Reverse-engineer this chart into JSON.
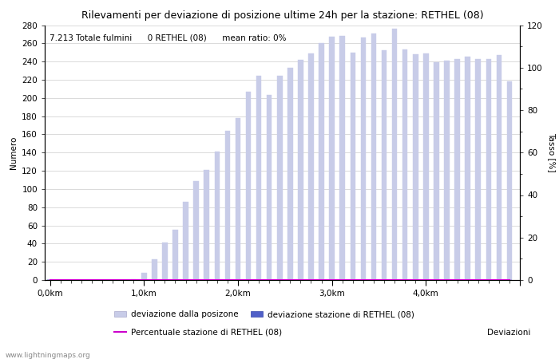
{
  "title": "Rilevamenti per deviazione di posizione ultime 24h per la stazione: RETHEL (08)",
  "xlabel": "Deviazioni",
  "ylabel_left": "Numero",
  "ylabel_right": "Tasso [%]",
  "annotation": "7.213 Totale fulmini      0 RETHEL (08)      mean ratio: 0%",
  "watermark": "www.lightningmaps.org",
  "ylim_left": [
    0,
    280
  ],
  "ylim_right": [
    0,
    120
  ],
  "ytick_left": [
    0,
    20,
    40,
    60,
    80,
    100,
    120,
    140,
    160,
    180,
    200,
    220,
    240,
    260,
    280
  ],
  "ytick_right": [
    0,
    20,
    40,
    60,
    80,
    100,
    120
  ],
  "bar_color_light": "#c8cce8",
  "bar_color_dark": "#5060c8",
  "line_color": "#cc00cc",
  "bg_color": "#ffffff",
  "grid_color": "#cccccc",
  "bar_values": [
    1,
    0,
    0,
    0,
    0,
    0,
    0,
    0,
    1,
    8,
    23,
    41,
    55,
    86,
    109,
    121,
    141,
    164,
    178,
    207,
    224,
    203,
    224,
    233,
    242,
    249,
    260,
    267,
    268,
    250,
    266,
    271,
    252,
    276,
    253,
    248,
    249,
    239,
    241,
    243,
    245,
    243,
    243,
    247,
    218
  ],
  "station_values": [
    0,
    0,
    0,
    0,
    0,
    0,
    0,
    0,
    0,
    0,
    0,
    0,
    0,
    0,
    0,
    0,
    0,
    0,
    0,
    0,
    0,
    0,
    0,
    0,
    0,
    0,
    0,
    0,
    0,
    0,
    0,
    0,
    0,
    0,
    0,
    0,
    0,
    0,
    0,
    0,
    0,
    0,
    0,
    0,
    0
  ],
  "xtick_km_positions": [
    0,
    9,
    18,
    27,
    36,
    45
  ],
  "xtick_km_labels": [
    "0,0km",
    "1,0km",
    "2,0km",
    "3,0km",
    "4,0km",
    ""
  ],
  "legend_labels": [
    "deviazione dalla posizone",
    "deviazione stazione di RETHEL (08)",
    "Percentuale stazione di RETHEL (08)"
  ],
  "figsize": [
    7.0,
    4.5
  ],
  "dpi": 100
}
